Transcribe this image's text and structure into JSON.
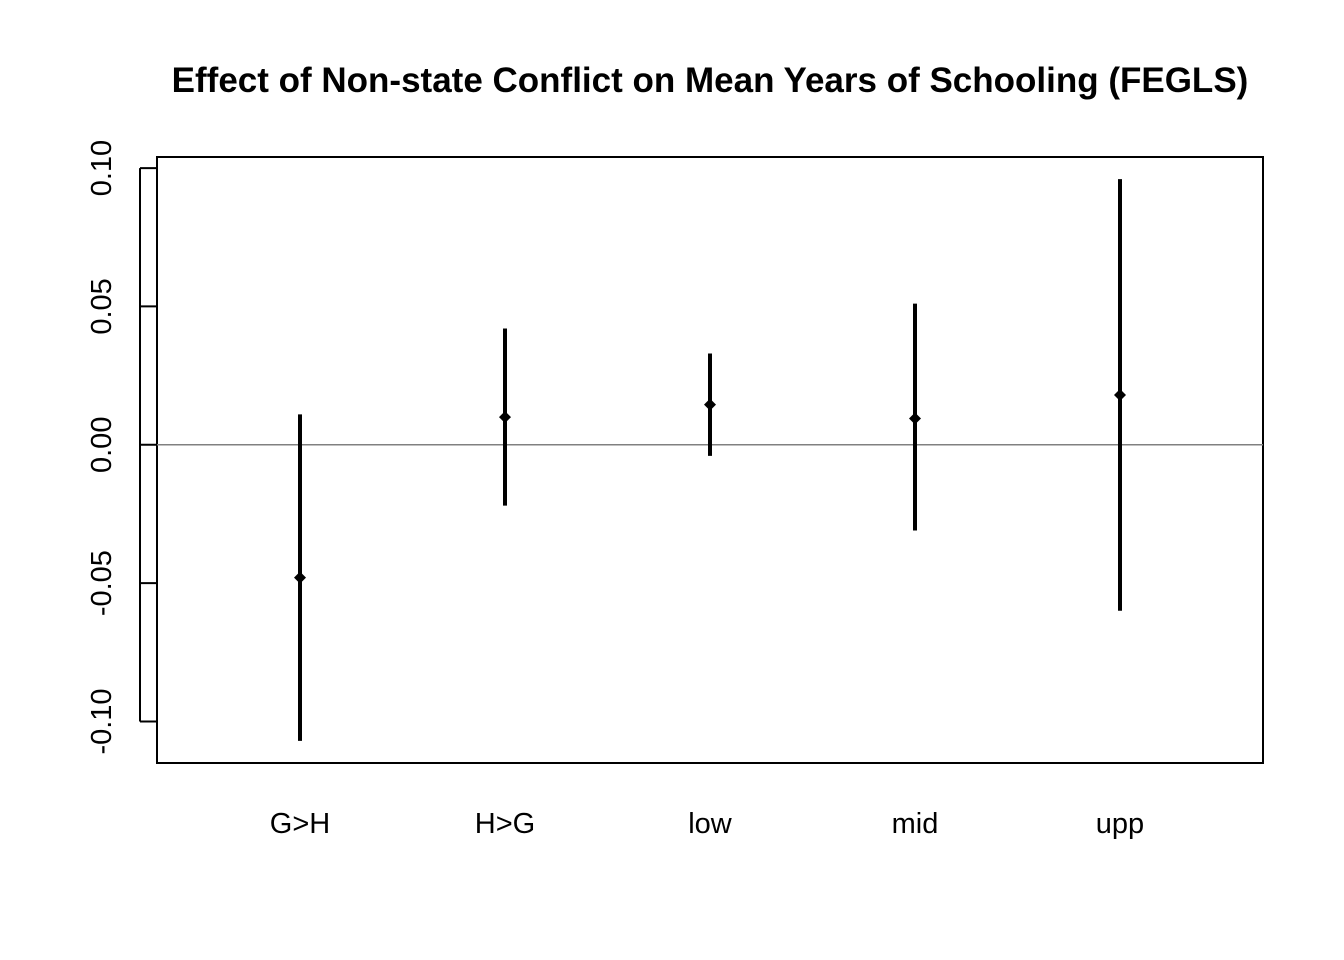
{
  "chart_data": {
    "type": "errorbar",
    "title": "Effect of Non-state Conflict on Mean Years of Schooling (FEGLS)",
    "xlabel": "",
    "ylabel": "",
    "categories": [
      "G>H",
      "H>G",
      "low",
      "mid",
      "upp"
    ],
    "estimates": [
      -0.048,
      0.01,
      0.0145,
      0.0095,
      0.018
    ],
    "lower": [
      -0.107,
      -0.022,
      -0.004,
      -0.031,
      -0.06
    ],
    "upper": [
      0.011,
      0.042,
      0.033,
      0.051,
      0.096
    ],
    "yticks": [
      -0.1,
      -0.05,
      0.0,
      0.05,
      0.1
    ],
    "ytick_labels": [
      "-0.10",
      "-0.05",
      "0.00",
      "0.05",
      "0.10"
    ],
    "ylim": [
      -0.115,
      0.104
    ],
    "reference_line": 0,
    "grid": false,
    "colors": {
      "marks": "#000000",
      "reference_line": "#808080",
      "frame": "#000000"
    }
  }
}
